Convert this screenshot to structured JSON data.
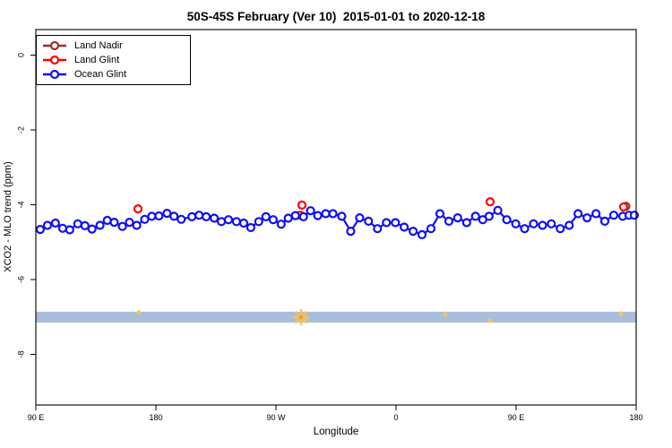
{
  "title": "50S-45S February (Ver 10)  2015-01-01 to 2020-12-18",
  "legend": {
    "items": [
      {
        "label": "Land Nadir",
        "color": "#A03030"
      },
      {
        "label": "Land Glint",
        "color": "#FF0000"
      },
      {
        "label": "Ocean Glint",
        "color": "#1111EE"
      }
    ]
  },
  "chart_data": {
    "type": "line",
    "title": "50S-45S February (Ver 10)  2015-01-01 to 2020-12-18",
    "xlabel": "Longitude",
    "ylabel": "XCO2 - MLO trend (ppm)",
    "grid": false,
    "legend_position": "top-left",
    "x_axis": {
      "tick_labels": [
        "90 E",
        "180",
        "90 W",
        "0",
        "90 E",
        "180"
      ],
      "tick_deg_from_left": [
        0,
        90,
        180,
        270,
        360,
        450
      ],
      "span_deg": 450,
      "note": "longitude axis runs eastward from 90E wrapping through 180, 90W, 0, 90E to 180"
    },
    "y_axis": {
      "ticks": [
        0,
        -2,
        -4,
        -6,
        -8
      ],
      "top_value": 0.68,
      "bottom_value": -9.3
    },
    "band": {
      "color": "#A9BEDB",
      "value_top": -6.86,
      "value_bottom": -7.15
    },
    "flags": {
      "color": "#F4C45C",
      "center_color": "#E8A03C",
      "points": [
        {
          "x_deg": 198.8,
          "value": -7.01,
          "size": "large",
          "shape": "star"
        },
        {
          "x_deg": 77.2,
          "value": -6.88,
          "size": "small",
          "shape": "dot"
        },
        {
          "x_deg": 306.9,
          "value": -6.93,
          "size": "small",
          "shape": "dot"
        },
        {
          "x_deg": 340.5,
          "value": -7.1,
          "size": "small",
          "shape": "dot"
        },
        {
          "x_deg": 438.6,
          "value": -6.91,
          "size": "small",
          "shape": "dot"
        }
      ]
    },
    "series": [
      {
        "name": "Land Nadir",
        "color": "#A03030",
        "marker": "open-circle",
        "line": false,
        "x_deg": [
          442.3
        ],
        "values": [
          -4.04
        ]
      },
      {
        "name": "Land Glint",
        "color": "#FF0000",
        "marker": "open-circle",
        "line": false,
        "x_deg": [
          76.6,
          198.2,
          199.5,
          340.5,
          440.6
        ],
        "values": [
          -4.11,
          -4.28,
          -4.01,
          -3.92,
          -4.06
        ]
      },
      {
        "name": "Ocean Glint",
        "color": "#1111EE",
        "marker": "open-circle",
        "line": true,
        "x_deg": [
          3.3,
          8.7,
          14.7,
          20.1,
          25.4,
          31.4,
          36.8,
          42.1,
          48.1,
          53.5,
          58.8,
          64.9,
          70.2,
          75.6,
          81.6,
          86.9,
          92.3,
          98.3,
          103.6,
          109.0,
          117.0,
          122.4,
          127.7,
          133.7,
          139.1,
          144.4,
          150.4,
          155.8,
          161.1,
          167.1,
          172.5,
          177.9,
          183.9,
          189.2,
          194.6,
          200.6,
          205.9,
          211.3,
          217.3,
          222.7,
          229.3,
          236.0,
          242.7,
          249.4,
          256.1,
          262.8,
          269.5,
          276.1,
          282.8,
          289.5,
          296.2,
          302.9,
          309.6,
          316.2,
          322.9,
          329.6,
          335.0,
          339.7,
          346.3,
          353.0,
          359.7,
          366.4,
          373.1,
          379.8,
          386.4,
          393.1,
          399.8,
          406.5,
          413.2,
          419.9,
          426.5,
          433.2,
          439.9,
          444.6,
          448.6
        ],
        "values": [
          -4.66,
          -4.55,
          -4.49,
          -4.63,
          -4.67,
          -4.51,
          -4.56,
          -4.65,
          -4.55,
          -4.42,
          -4.47,
          -4.58,
          -4.47,
          -4.55,
          -4.39,
          -4.31,
          -4.3,
          -4.23,
          -4.31,
          -4.39,
          -4.32,
          -4.28,
          -4.32,
          -4.36,
          -4.45,
          -4.4,
          -4.45,
          -4.49,
          -4.61,
          -4.45,
          -4.32,
          -4.4,
          -4.52,
          -4.36,
          -4.29,
          -4.32,
          -4.16,
          -4.29,
          -4.24,
          -4.24,
          -4.31,
          -4.71,
          -4.35,
          -4.44,
          -4.64,
          -4.48,
          -4.48,
          -4.6,
          -4.71,
          -4.8,
          -4.64,
          -4.24,
          -4.44,
          -4.35,
          -4.48,
          -4.31,
          -4.4,
          -4.31,
          -4.15,
          -4.4,
          -4.51,
          -4.64,
          -4.51,
          -4.55,
          -4.51,
          -4.64,
          -4.55,
          -4.24,
          -4.35,
          -4.24,
          -4.44,
          -4.28,
          -4.31,
          -4.28,
          -4.28
        ]
      }
    ]
  }
}
